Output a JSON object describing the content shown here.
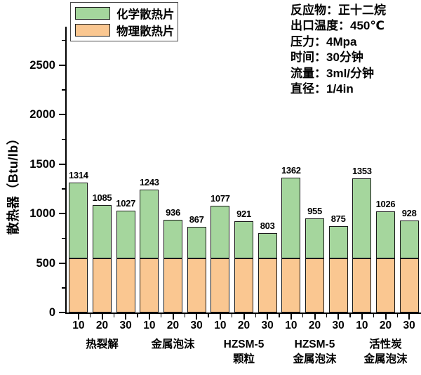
{
  "y_axis": {
    "title": "散热器（Btu/lb）",
    "major_ticks": [
      0,
      500,
      1000,
      1500,
      2000,
      2500
    ],
    "minor_ticks": [
      250,
      750,
      1250,
      1750,
      2250,
      2750
    ]
  },
  "legend": {
    "items": [
      {
        "label": "化学散热片",
        "color": "#a5d69d"
      },
      {
        "label": "物理散热片",
        "color": "#fac791"
      }
    ]
  },
  "annotations": {
    "lines": [
      "反应物：正十二烷",
      "出口温度：450℃",
      "压力：4Mpa",
      "时间：30分钟",
      "流量：3ml/分钟",
      "直径：1/4in"
    ]
  },
  "colors": {
    "chemical_fill": "#a5d69d",
    "physical_fill": "#fac791",
    "bar_outline": "#1a1a1a",
    "axis": "#000000"
  },
  "chart_data": {
    "type": "bar",
    "stacked": true,
    "title": "",
    "xlabel": "",
    "ylabel": "散热器（Btu/lb）",
    "ylim": [
      0,
      2890
    ],
    "grid": false,
    "legend_position": "top-left",
    "y_major_ticks": [
      0,
      500,
      1000,
      1500,
      2000,
      2500
    ],
    "y_minor_ticks": [
      250,
      750,
      1250,
      1750,
      2250,
      2750
    ],
    "groups": [
      {
        "label_lines": [
          "热裂解"
        ],
        "x": [
          "10",
          "20",
          "30"
        ]
      },
      {
        "label_lines": [
          "金属泡沫"
        ],
        "x": [
          "10",
          "20",
          "30"
        ]
      },
      {
        "label_lines": [
          "HZSM-5",
          "颗粒"
        ],
        "x": [
          "10",
          "20",
          "30"
        ]
      },
      {
        "label_lines": [
          "HZSM-5",
          "金属泡沫"
        ],
        "x": [
          "10",
          "20",
          "30"
        ]
      },
      {
        "label_lines": [
          "活性炭",
          "金属泡沫"
        ],
        "x": [
          "10",
          "20",
          "30"
        ]
      }
    ],
    "totals": [
      1314,
      1085,
      1027,
      1243,
      936,
      867,
      1077,
      921,
      803,
      1362,
      955,
      875,
      1353,
      1026,
      928
    ],
    "series": [
      {
        "name": "物理散热片",
        "color": "#fac791",
        "values": [
          550,
          550,
          550,
          550,
          550,
          550,
          550,
          550,
          550,
          550,
          550,
          550,
          550,
          550,
          550
        ]
      },
      {
        "name": "化学散热片",
        "color": "#a5d69d",
        "values": [
          764,
          535,
          477,
          693,
          386,
          317,
          527,
          371,
          253,
          812,
          405,
          325,
          803,
          476,
          378
        ]
      }
    ]
  }
}
